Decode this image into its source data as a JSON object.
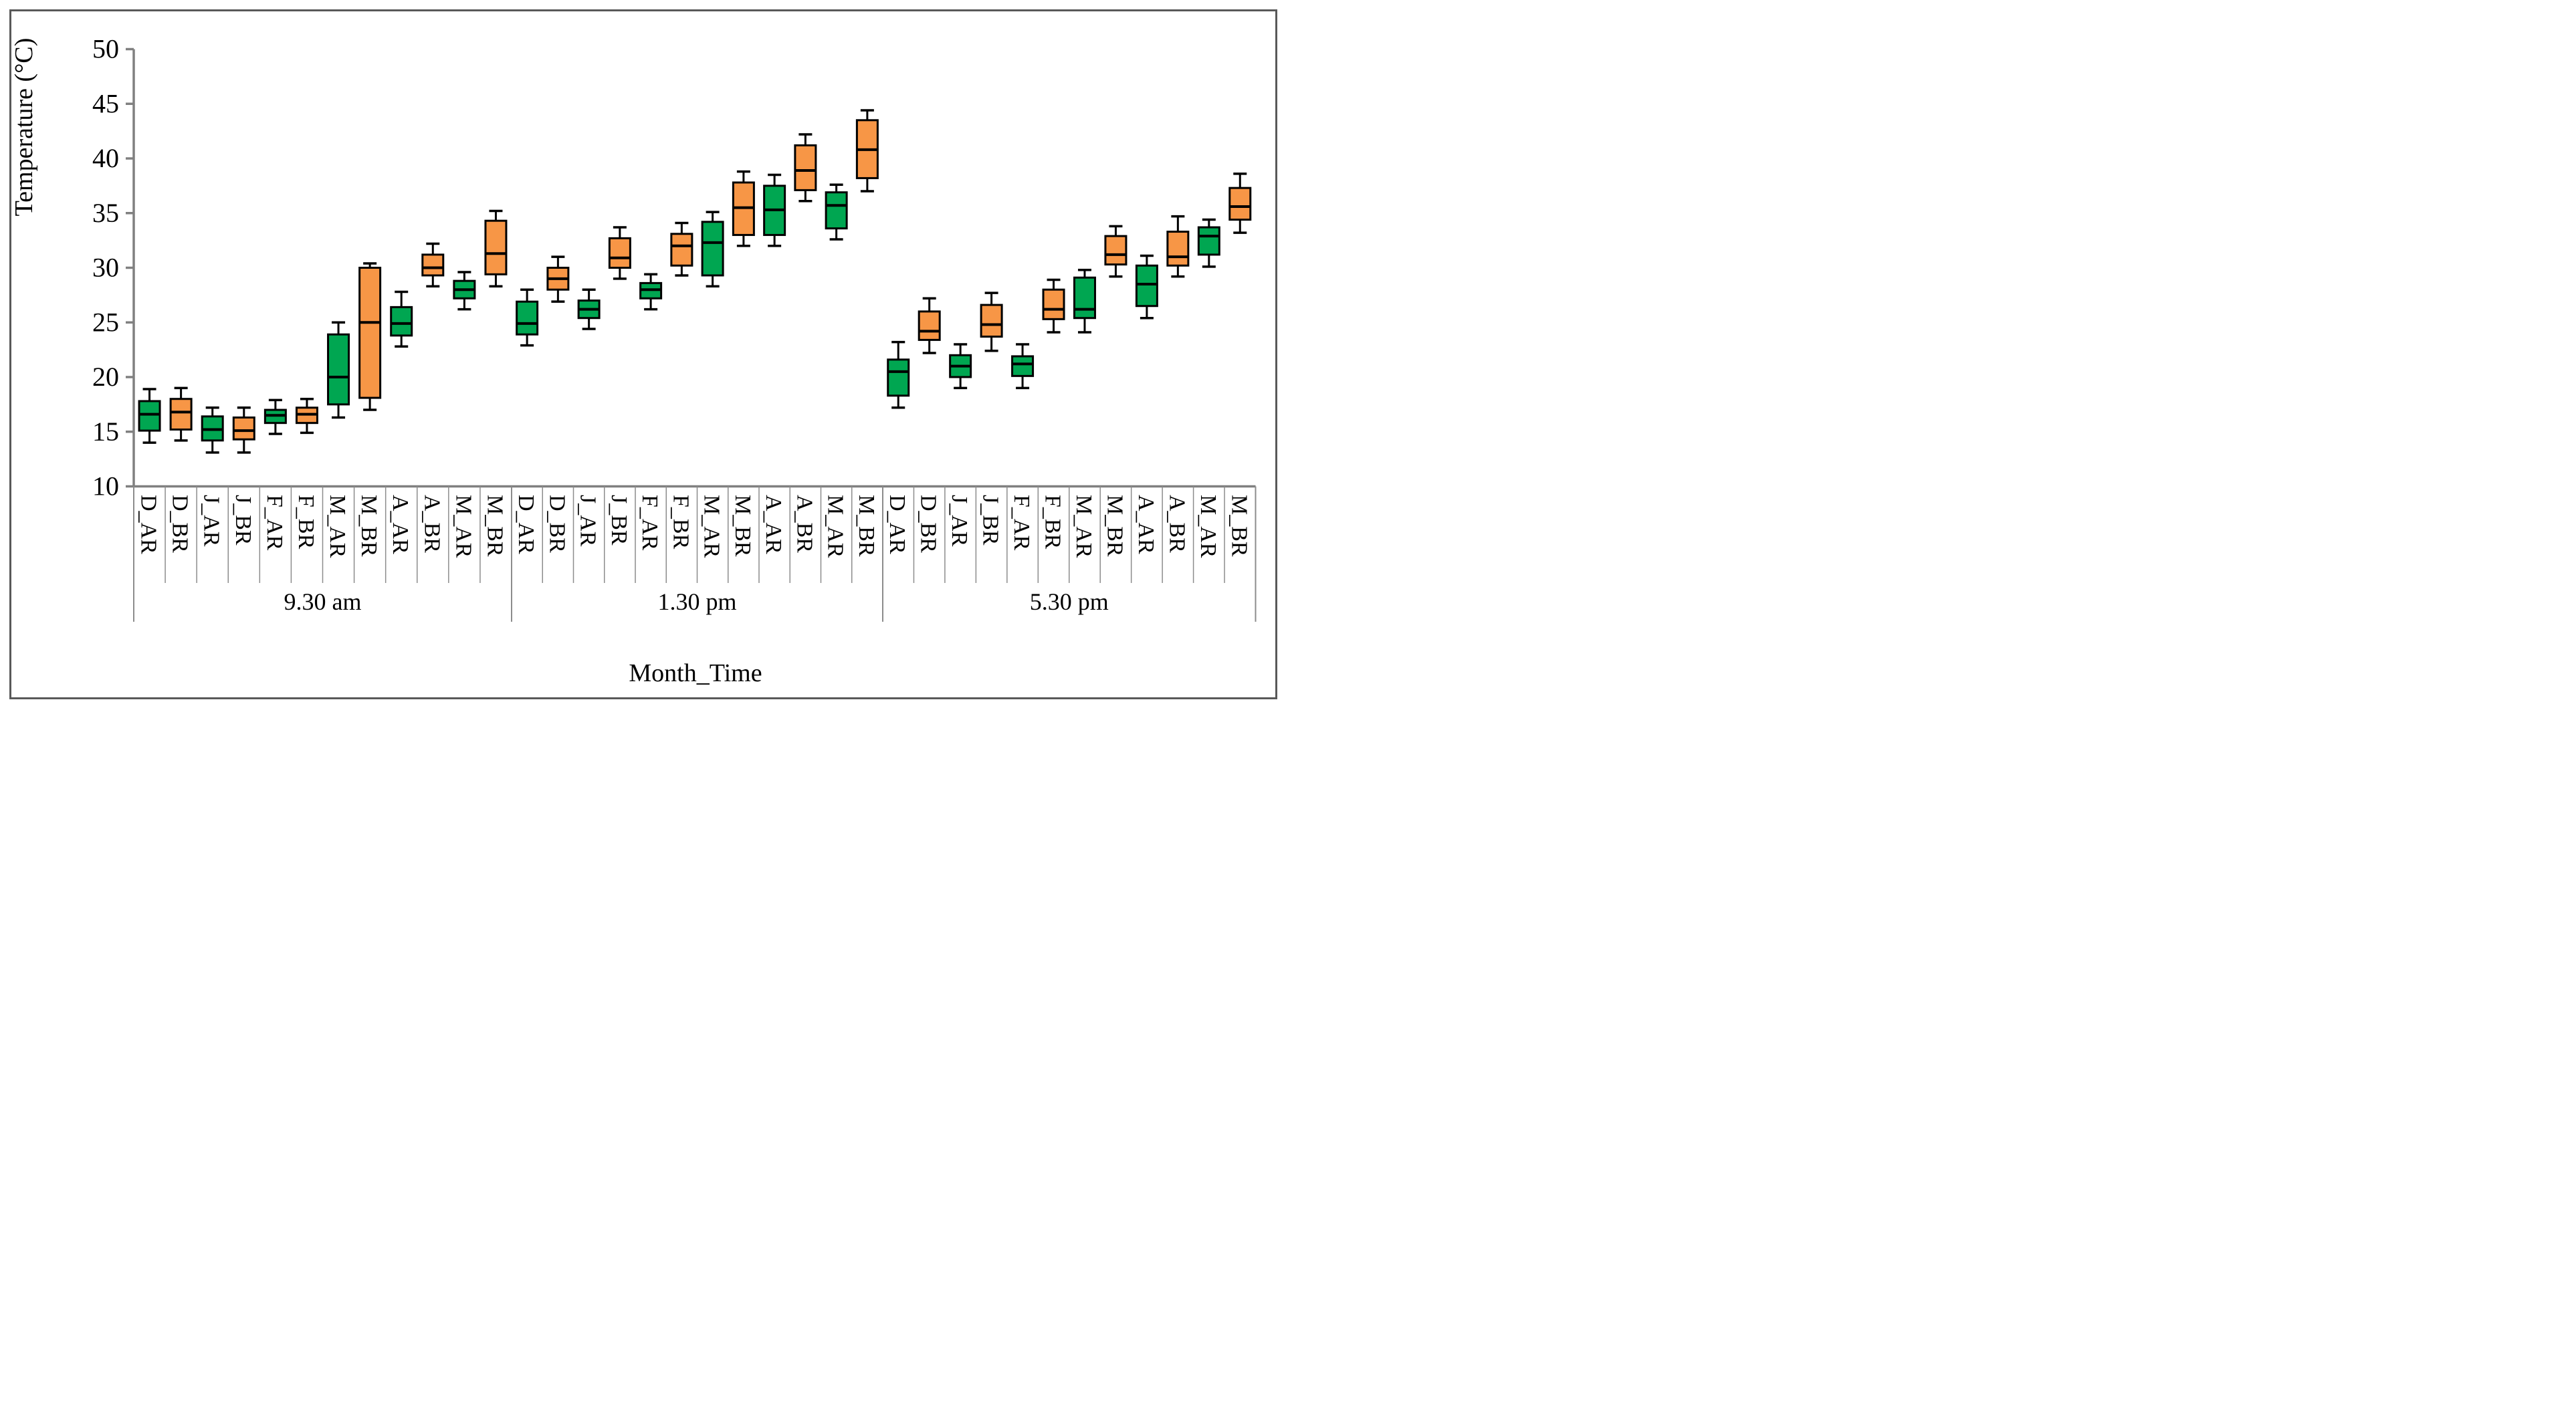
{
  "figure": {
    "y_axis_title": "Temperature (°C)",
    "x_axis_title": "Month_Time"
  },
  "chart_data": {
    "type": "boxplot",
    "title": "",
    "xlabel": "Month_Time",
    "ylabel": "Temperature (°C)",
    "ylim": [
      10,
      50
    ],
    "yticks": [
      10,
      15,
      20,
      25,
      30,
      35,
      40,
      45,
      50
    ],
    "grid": false,
    "legend": "none",
    "series_colors": {
      "AR": "#00A651",
      "BR": "#F79646"
    },
    "axis_color": "#808080",
    "separator_color": "#8C8C8C",
    "box_outline_color": "#000000",
    "groups": [
      {
        "label": "9.30 am",
        "boxes": [
          {
            "label": "D_AR",
            "series": "AR",
            "low": 14.0,
            "q1": 15.1,
            "median": 16.6,
            "q3": 17.8,
            "high": 18.9
          },
          {
            "label": "D_BR",
            "series": "BR",
            "low": 14.2,
            "q1": 15.2,
            "median": 16.8,
            "q3": 18.0,
            "high": 19.0
          },
          {
            "label": "J_AR",
            "series": "AR",
            "low": 13.1,
            "q1": 14.2,
            "median": 15.2,
            "q3": 16.4,
            "high": 17.2
          },
          {
            "label": "J_BR",
            "series": "BR",
            "low": 13.1,
            "q1": 14.3,
            "median": 15.1,
            "q3": 16.3,
            "high": 17.2
          },
          {
            "label": "F_AR",
            "series": "AR",
            "low": 14.8,
            "q1": 15.8,
            "median": 16.5,
            "q3": 17.0,
            "high": 17.9
          },
          {
            "label": "F_BR",
            "series": "BR",
            "low": 14.9,
            "q1": 15.8,
            "median": 16.6,
            "q3": 17.2,
            "high": 18.0
          },
          {
            "label": "M_AR",
            "series": "AR",
            "low": 16.3,
            "q1": 17.5,
            "median": 20.0,
            "q3": 23.9,
            "high": 25.0
          },
          {
            "label": "M_BR",
            "series": "BR",
            "low": 17.0,
            "q1": 18.1,
            "median": 25.0,
            "q3": 30.0,
            "high": 30.4
          },
          {
            "label": "A_AR",
            "series": "AR",
            "low": 22.8,
            "q1": 23.8,
            "median": 24.9,
            "q3": 26.4,
            "high": 27.8
          },
          {
            "label": "A_BR",
            "series": "BR",
            "low": 28.3,
            "q1": 29.3,
            "median": 30.0,
            "q3": 31.2,
            "high": 32.2
          },
          {
            "label": "M_AR",
            "series": "AR",
            "low": 26.2,
            "q1": 27.2,
            "median": 28.0,
            "q3": 28.8,
            "high": 29.6
          },
          {
            "label": "M_BR",
            "series": "BR",
            "low": 28.3,
            "q1": 29.4,
            "median": 31.3,
            "q3": 34.3,
            "high": 35.2
          }
        ]
      },
      {
        "label": "1.30 pm",
        "boxes": [
          {
            "label": "D_AR",
            "series": "AR",
            "low": 22.9,
            "q1": 23.9,
            "median": 24.9,
            "q3": 26.9,
            "high": 28.0
          },
          {
            "label": "D_BR",
            "series": "BR",
            "low": 26.9,
            "q1": 28.0,
            "median": 29.0,
            "q3": 30.0,
            "high": 31.0
          },
          {
            "label": "J_AR",
            "series": "AR",
            "low": 24.4,
            "q1": 25.4,
            "median": 26.2,
            "q3": 27.0,
            "high": 28.0
          },
          {
            "label": "J_BR",
            "series": "BR",
            "low": 29.0,
            "q1": 30.0,
            "median": 30.9,
            "q3": 32.7,
            "high": 33.7
          },
          {
            "label": "F_AR",
            "series": "AR",
            "low": 26.2,
            "q1": 27.2,
            "median": 28.0,
            "q3": 28.6,
            "high": 29.4
          },
          {
            "label": "F_BR",
            "series": "BR",
            "low": 29.3,
            "q1": 30.2,
            "median": 32.0,
            "q3": 33.1,
            "high": 34.1
          },
          {
            "label": "M_AR",
            "series": "AR",
            "low": 28.3,
            "q1": 29.3,
            "median": 32.3,
            "q3": 34.2,
            "high": 35.1
          },
          {
            "label": "M_BR",
            "series": "BR",
            "low": 32.0,
            "q1": 33.0,
            "median": 35.5,
            "q3": 37.8,
            "high": 38.8
          },
          {
            "label": "A_AR",
            "series": "AR",
            "low": 32.0,
            "q1": 33.0,
            "median": 35.3,
            "q3": 37.5,
            "high": 38.5
          },
          {
            "label": "A_BR",
            "series": "BR",
            "low": 36.1,
            "q1": 37.1,
            "median": 38.9,
            "q3": 41.2,
            "high": 42.2
          },
          {
            "label": "M_AR",
            "series": "AR",
            "low": 32.6,
            "q1": 33.6,
            "median": 35.7,
            "q3": 36.9,
            "high": 37.6
          },
          {
            "label": "M_BR",
            "series": "BR",
            "low": 37.0,
            "q1": 38.2,
            "median": 40.8,
            "q3": 43.5,
            "high": 44.4
          }
        ]
      },
      {
        "label": "5.30 pm",
        "boxes": [
          {
            "label": "D_AR",
            "series": "AR",
            "low": 17.2,
            "q1": 18.3,
            "median": 20.5,
            "q3": 21.6,
            "high": 23.2
          },
          {
            "label": "D_BR",
            "series": "BR",
            "low": 22.2,
            "q1": 23.4,
            "median": 24.2,
            "q3": 26.0,
            "high": 27.2
          },
          {
            "label": "J_AR",
            "series": "AR",
            "low": 19.0,
            "q1": 20.0,
            "median": 21.0,
            "q3": 22.0,
            "high": 23.0
          },
          {
            "label": "J_BR",
            "series": "BR",
            "low": 22.4,
            "q1": 23.7,
            "median": 24.8,
            "q3": 26.6,
            "high": 27.7
          },
          {
            "label": "F_AR",
            "series": "AR",
            "low": 19.0,
            "q1": 20.1,
            "median": 21.2,
            "q3": 21.9,
            "high": 23.0
          },
          {
            "label": "F_BR",
            "series": "BR",
            "low": 24.1,
            "q1": 25.3,
            "median": 26.2,
            "q3": 28.0,
            "high": 28.9
          },
          {
            "label": "M_AR",
            "series": "AR",
            "low": 24.1,
            "q1": 25.4,
            "median": 26.2,
            "q3": 29.1,
            "high": 29.8
          },
          {
            "label": "M_BR",
            "series": "BR",
            "low": 29.2,
            "q1": 30.3,
            "median": 31.2,
            "q3": 32.9,
            "high": 33.8
          },
          {
            "label": "A_AR",
            "series": "AR",
            "low": 25.4,
            "q1": 26.5,
            "median": 28.5,
            "q3": 30.2,
            "high": 31.1
          },
          {
            "label": "A_BR",
            "series": "BR",
            "low": 29.2,
            "q1": 30.2,
            "median": 31.0,
            "q3": 33.3,
            "high": 34.7
          },
          {
            "label": "M_AR",
            "series": "AR",
            "low": 30.1,
            "q1": 31.2,
            "median": 32.9,
            "q3": 33.7,
            "high": 34.4
          },
          {
            "label": "M_BR",
            "series": "BR",
            "low": 33.2,
            "q1": 34.4,
            "median": 35.6,
            "q3": 37.3,
            "high": 38.6
          }
        ]
      }
    ]
  }
}
